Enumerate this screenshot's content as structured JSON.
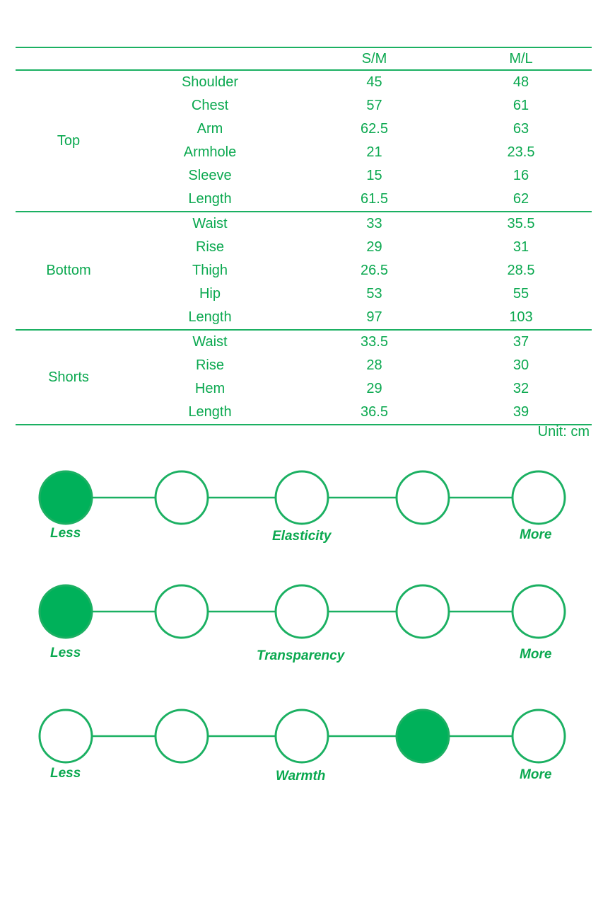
{
  "table": {
    "headers": [
      "",
      "",
      "S/M",
      "M/L"
    ],
    "groups": [
      {
        "category": "Top",
        "rows": [
          {
            "measure": "Shoulder",
            "sm": "45",
            "ml": "48"
          },
          {
            "measure": "Chest",
            "sm": "57",
            "ml": "61"
          },
          {
            "measure": "Arm",
            "sm": "62.5",
            "ml": "63"
          },
          {
            "measure": "Armhole",
            "sm": "21",
            "ml": "23.5"
          },
          {
            "measure": "Sleeve",
            "sm": "15",
            "ml": "16"
          },
          {
            "measure": "Length",
            "sm": "61.5",
            "ml": "62"
          }
        ]
      },
      {
        "category": "Bottom",
        "rows": [
          {
            "measure": "Waist",
            "sm": "33",
            "ml": "35.5"
          },
          {
            "measure": "Rise",
            "sm": "29",
            "ml": "31"
          },
          {
            "measure": "Thigh",
            "sm": "26.5",
            "ml": "28.5"
          },
          {
            "measure": "Hip",
            "sm": "53",
            "ml": "55"
          },
          {
            "measure": "Length",
            "sm": "97",
            "ml": "103"
          }
        ]
      },
      {
        "category": "Shorts",
        "rows": [
          {
            "measure": "Waist",
            "sm": "33.5",
            "ml": "37"
          },
          {
            "measure": "Rise",
            "sm": "28",
            "ml": "30"
          },
          {
            "measure": "Hem",
            "sm": "29",
            "ml": "32"
          },
          {
            "measure": "Length",
            "sm": "36.5",
            "ml": "39"
          }
        ]
      }
    ],
    "unit_note": "Unit: cm"
  },
  "scales": [
    {
      "name": "Elasticity",
      "low_label": "Less",
      "high_label": "More",
      "steps": 5,
      "selected": 1
    },
    {
      "name": "Transparency",
      "low_label": "Less",
      "high_label": "More",
      "steps": 5,
      "selected": 1
    },
    {
      "name": "Warmth",
      "low_label": "Less",
      "high_label": "More",
      "steps": 5,
      "selected": 4
    }
  ],
  "colors": {
    "accent": "#0aa84f",
    "fill": "#00b15a",
    "line": "#1bb062"
  }
}
